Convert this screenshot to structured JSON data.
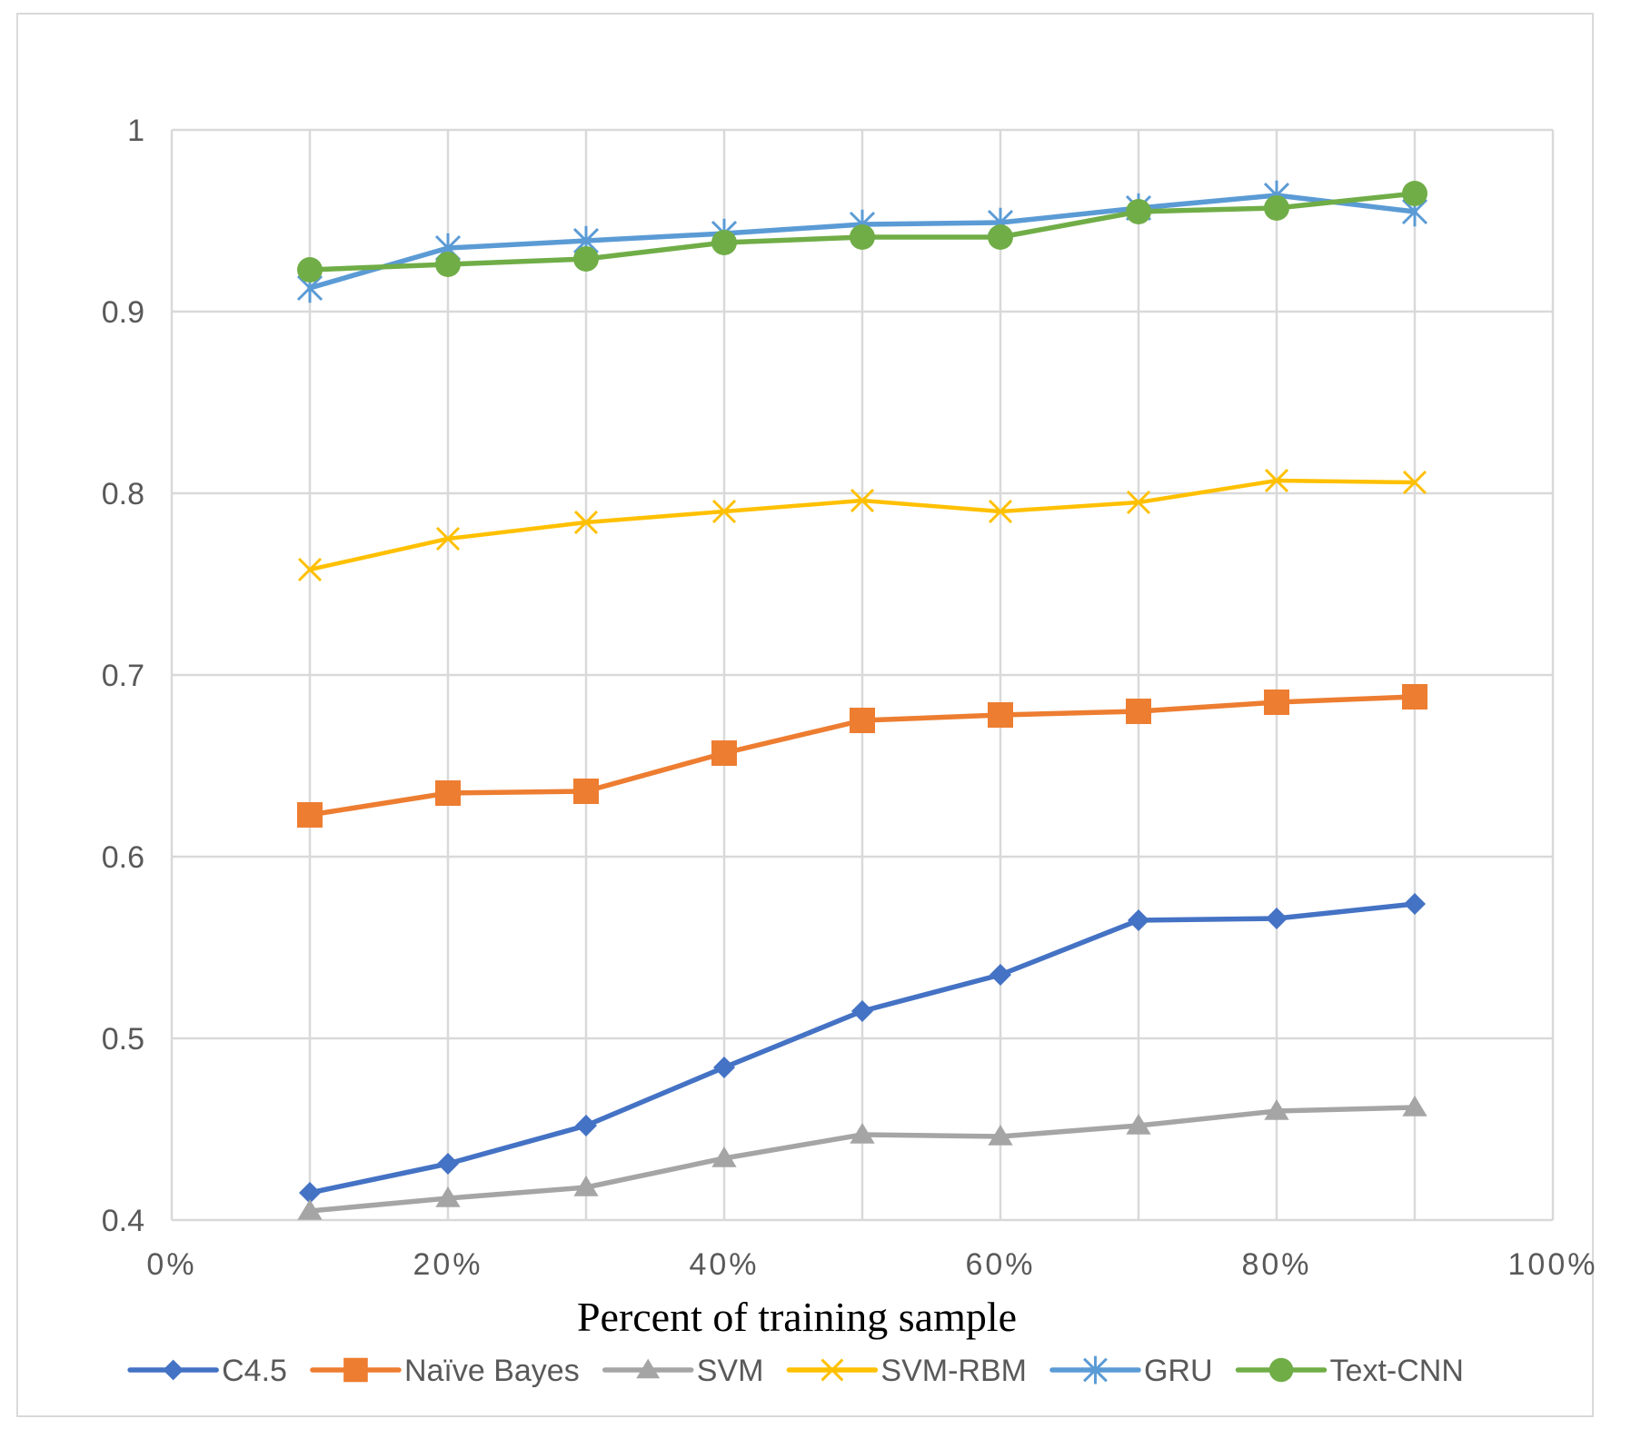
{
  "chart_data": {
    "type": "line",
    "title": "",
    "xlabel": "Percent of training sample",
    "ylabel": "",
    "xlim": [
      0,
      100
    ],
    "ylim": [
      0.4,
      1.0
    ],
    "x": [
      10,
      20,
      30,
      40,
      50,
      60,
      70,
      80,
      90
    ],
    "x_ticks": [
      0,
      20,
      40,
      60,
      80,
      100
    ],
    "x_tick_labels": [
      "0%",
      "20%",
      "40%",
      "60%",
      "80%",
      "100%"
    ],
    "y_ticks": [
      0.4,
      0.5,
      0.6,
      0.7,
      0.8,
      0.9,
      1.0
    ],
    "y_tick_labels": [
      "0.4",
      "0.5",
      "0.6",
      "0.7",
      "0.8",
      "0.9",
      "1"
    ],
    "x_grid_values": [
      0,
      10,
      20,
      30,
      40,
      50,
      60,
      70,
      80,
      90,
      100
    ],
    "grid": true,
    "legend_position": "bottom",
    "series": [
      {
        "name": "C4.5",
        "color": "#4472C4",
        "marker": "diamond",
        "values": [
          0.415,
          0.431,
          0.452,
          0.484,
          0.515,
          0.535,
          0.565,
          0.566,
          0.574
        ]
      },
      {
        "name": "Naïve Bayes",
        "color": "#ED7D31",
        "marker": "square",
        "values": [
          0.623,
          0.635,
          0.636,
          0.657,
          0.675,
          0.678,
          0.68,
          0.685,
          0.688
        ]
      },
      {
        "name": "SVM",
        "color": "#A5A5A5",
        "marker": "triangle",
        "values": [
          0.405,
          0.412,
          0.418,
          0.434,
          0.447,
          0.446,
          0.452,
          0.46,
          0.462
        ]
      },
      {
        "name": "SVM-RBM",
        "color": "#FFC000",
        "marker": "x",
        "values": [
          0.758,
          0.775,
          0.784,
          0.79,
          0.796,
          0.79,
          0.795,
          0.807,
          0.806
        ]
      },
      {
        "name": "GRU",
        "color": "#5B9BD5",
        "marker": "star",
        "values": [
          0.913,
          0.935,
          0.939,
          0.943,
          0.948,
          0.949,
          0.957,
          0.964,
          0.955
        ]
      },
      {
        "name": "Text-CNN",
        "color": "#70AD47",
        "marker": "circle",
        "values": [
          0.923,
          0.926,
          0.929,
          0.938,
          0.941,
          0.941,
          0.955,
          0.957,
          0.965
        ]
      }
    ]
  }
}
